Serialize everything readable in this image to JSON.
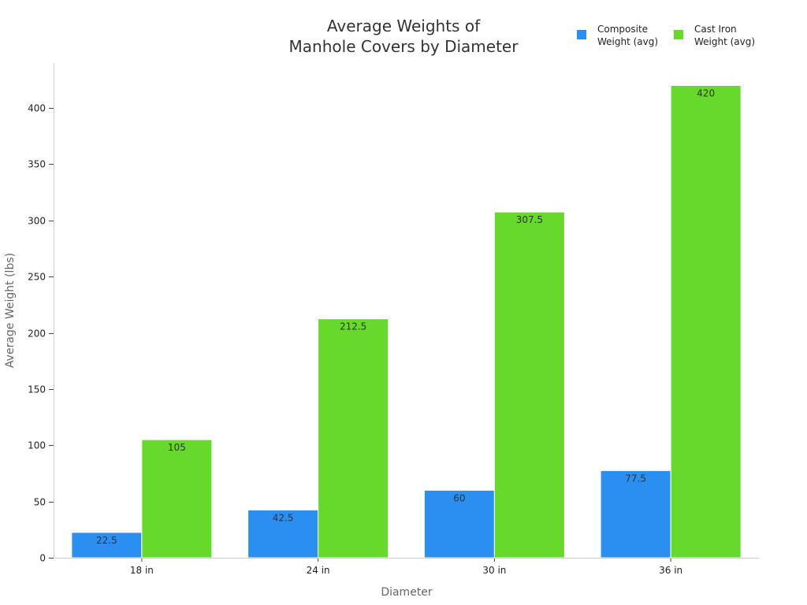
{
  "chart_data": {
    "type": "bar",
    "title": [
      "Average Weights of",
      "Manhole Covers by Diameter"
    ],
    "xlabel": "Diameter",
    "ylabel": "Average Weight (lbs)",
    "categories": [
      "18 in",
      "24 in",
      "30 in",
      "36 in"
    ],
    "ylim": [
      0,
      440
    ],
    "yticks": [
      0,
      50,
      100,
      150,
      200,
      250,
      300,
      350,
      400
    ],
    "grid": false,
    "legend_position": "top-right",
    "series": [
      {
        "name_lines": [
          "Composite",
          "Weight (avg)"
        ],
        "color": "#2b8ff2",
        "values": [
          22.5,
          42.5,
          60,
          77.5
        ],
        "labels": [
          "22.5",
          "42.5",
          "60",
          "77.5"
        ]
      },
      {
        "name_lines": [
          "Cast Iron",
          "Weight (avg)"
        ],
        "color": "#66d92a",
        "values": [
          105,
          212.5,
          307.5,
          420
        ],
        "labels": [
          "105",
          "212.5",
          "307.5",
          "420"
        ]
      }
    ]
  }
}
